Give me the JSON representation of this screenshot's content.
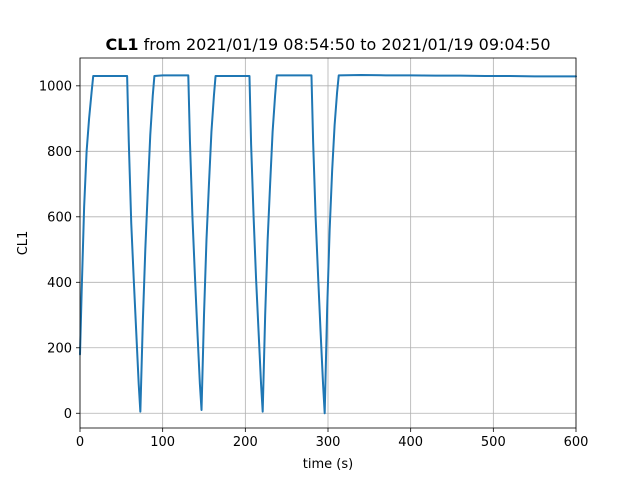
{
  "chart_data": {
    "type": "line",
    "title_bold": "CL1",
    "title_rest": " from 2021/01/19 08:54:50 to 2021/01/19 09:04:50",
    "xlabel": "time (s)",
    "ylabel": "CL1",
    "xlim": [
      0,
      600
    ],
    "ylim": [
      -45,
      1085
    ],
    "xticks": [
      0,
      100,
      200,
      300,
      400,
      500,
      600
    ],
    "yticks": [
      0,
      200,
      400,
      600,
      800,
      1000
    ],
    "grid": true,
    "series": [
      {
        "color": "#1f77b4",
        "x": [
          0,
          2,
          5,
          8,
          11,
          14,
          16,
          30,
          45,
          57,
          59,
          62,
          65,
          68,
          71,
          73,
          76,
          79,
          82,
          85,
          88,
          90,
          100,
          115,
          131,
          133,
          136,
          139,
          142,
          145,
          147,
          150,
          153,
          156,
          159,
          162,
          164,
          180,
          195,
          205,
          207,
          210,
          213,
          216,
          219,
          221,
          224,
          227,
          230,
          233,
          236,
          238,
          255,
          270,
          280,
          282,
          285,
          288,
          291,
          294,
          296,
          299,
          302,
          305,
          308,
          311,
          313,
          340,
          370,
          400,
          430,
          460,
          490,
          520,
          550,
          580,
          600
        ],
        "y": [
          180,
          370,
          630,
          800,
          900,
          980,
          1030,
          1030,
          1030,
          1030,
          830,
          580,
          410,
          250,
          90,
          5,
          280,
          500,
          680,
          850,
          970,
          1030,
          1032,
          1032,
          1032,
          830,
          600,
          420,
          250,
          90,
          10,
          300,
          530,
          700,
          860,
          970,
          1030,
          1030,
          1030,
          1030,
          820,
          600,
          410,
          250,
          90,
          5,
          300,
          530,
          700,
          860,
          970,
          1032,
          1032,
          1032,
          1032,
          830,
          600,
          420,
          250,
          90,
          0,
          320,
          560,
          740,
          880,
          980,
          1032,
          1033,
          1032,
          1032,
          1031,
          1031,
          1030,
          1030,
          1029,
          1029,
          1029
        ]
      }
    ]
  }
}
